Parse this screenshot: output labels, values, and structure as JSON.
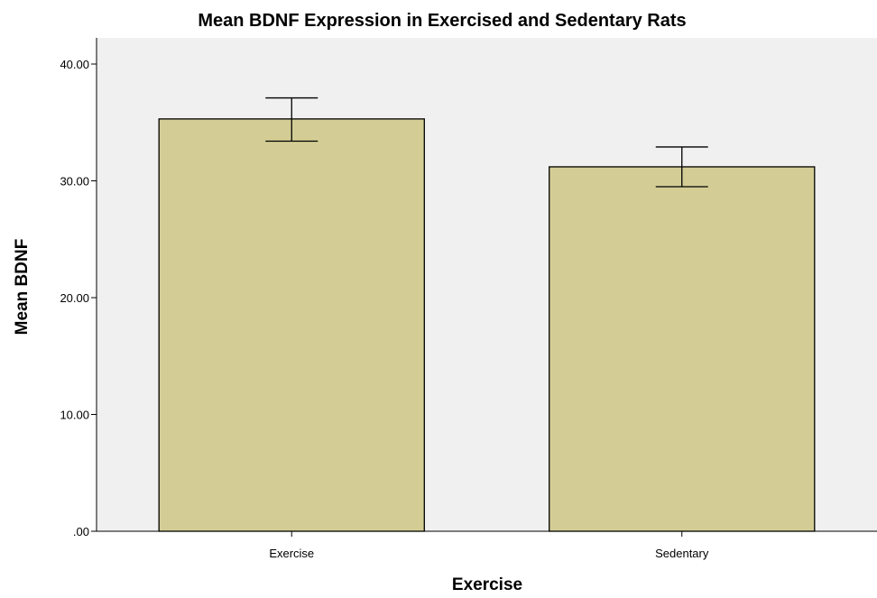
{
  "chart_data": {
    "type": "bar",
    "title": "Mean BDNF Expression in Exercised and Sedentary Rats",
    "xlabel": "Exercise",
    "ylabel": "Mean BDNF",
    "categories": [
      "Exercise",
      "Sedentary"
    ],
    "values": [
      35.3,
      31.2
    ],
    "error_bars": {
      "upper": [
        37.1,
        32.9
      ],
      "lower": [
        33.4,
        29.5
      ]
    },
    "ylim": [
      0,
      40
    ],
    "yticks": [
      0,
      10,
      20,
      30,
      40
    ],
    "ytick_labels": [
      ".00",
      "10.00",
      "20.00",
      "30.00",
      "40.00"
    ],
    "grid": false,
    "legend": "none",
    "colors": {
      "bar_fill": "#d3cd95",
      "bar_stroke": "#000000",
      "plot_background": "#f0f0f0",
      "axis": "#000000"
    }
  }
}
